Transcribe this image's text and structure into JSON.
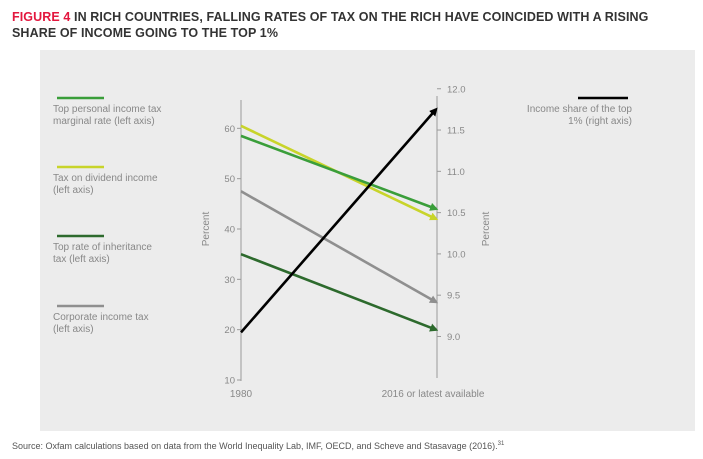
{
  "figure": {
    "number": "FIGURE 4",
    "title": " IN RICH COUNTRIES, FALLING RATES OF TAX ON THE RICH HAVE COINCIDED WITH A RISING SHARE OF INCOME GOING TO THE TOP 1%"
  },
  "source": {
    "text": "Source: Oxfam calculations based on data from the World Inequality Lab, IMF, OECD, and Scheve and Stasavage (2016).",
    "note": "31"
  },
  "chart_data": {
    "type": "line",
    "x": [
      "1980",
      "2016 or latest available"
    ],
    "left_axis": {
      "label": "Percent",
      "ylim": [
        10,
        70
      ],
      "ticks": [
        10,
        20,
        30,
        40,
        50,
        60
      ]
    },
    "right_axis": {
      "label": "Percent",
      "ylim": [
        8.6,
        12.1
      ],
      "ticks": [
        "9.0",
        "9.5",
        "10.0",
        "10.5",
        "11.0",
        "11.5",
        "12.0"
      ]
    },
    "series": [
      {
        "name": "Top personal income tax marginal rate (left axis)",
        "axis": "left",
        "color": "#3a9e3a",
        "values": [
          58.5,
          44
        ]
      },
      {
        "name": "Tax on dividend income (left axis)",
        "axis": "left",
        "color": "#c8d42a",
        "values": [
          60.5,
          42
        ]
      },
      {
        "name": "Top rate of inheritance tax (left axis)",
        "axis": "left",
        "color": "#2d6a2d",
        "values": [
          35,
          20
        ]
      },
      {
        "name": "Corporate income tax (left axis)",
        "axis": "left",
        "color": "#8f8f8f",
        "values": [
          47.5,
          25.5
        ]
      },
      {
        "name": "Income share of the top 1% (right axis)",
        "axis": "right",
        "color": "#000000",
        "values": [
          9.05,
          11.75
        ]
      }
    ],
    "legend": {
      "left": [
        {
          "lines": [
            "Top personal income tax",
            "marginal rate (left axis)"
          ]
        },
        {
          "lines": [
            "Tax on dividend income",
            "(left axis)"
          ]
        },
        {
          "lines": [
            "Top rate of inheritance",
            "tax (left axis)"
          ]
        },
        {
          "lines": [
            "Corporate income tax",
            "(left axis)"
          ]
        }
      ],
      "right": [
        {
          "lines": [
            "Income share of the top",
            "1% (right axis)"
          ]
        }
      ]
    }
  }
}
